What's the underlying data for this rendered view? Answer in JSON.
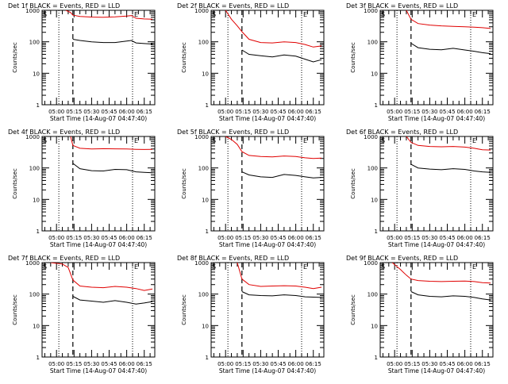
{
  "xlabel": "Start Time (14-Aug-07 04:47:40)",
  "ylabel": "Counts/sec",
  "x_ticks": [
    "05:00",
    "05:15",
    "05:30",
    "05:45",
    "06:00",
    "06:15"
  ],
  "y_ticks": [
    "1",
    "10",
    "100",
    "1000"
  ],
  "colors": {
    "events": "#000000",
    "lld": "#e00000"
  },
  "chart_data": [
    {
      "type": "line",
      "title": "Det 1f BLACK = Events, RED = LLD",
      "flag_s": "S",
      "flag_e": "E",
      "xlim": [
        "04:47:40",
        "06:24:00"
      ],
      "ylim": [
        1,
        1000
      ],
      "yscale": "log",
      "grid": false,
      "dotted_x": [
        "05:02",
        "06:05"
      ],
      "dashed_x": [
        "05:14"
      ],
      "series": [
        {
          "name": "Events",
          "x": [
            "05:14",
            "05:20",
            "05:30",
            "05:40",
            "05:50",
            "06:00",
            "06:04",
            "06:08",
            "06:15",
            "06:22"
          ],
          "y": [
            120,
            110,
            100,
            95,
            95,
            105,
            110,
            92,
            88,
            85
          ]
        },
        {
          "name": "LLD",
          "x": [
            "05:08",
            "05:12",
            "05:14",
            "05:20",
            "05:30",
            "05:40",
            "05:50",
            "06:00",
            "06:04",
            "06:08",
            "06:15",
            "06:22"
          ],
          "y": [
            1000,
            850,
            700,
            640,
            610,
            600,
            620,
            660,
            680,
            560,
            530,
            520
          ]
        }
      ]
    },
    {
      "type": "line",
      "title": "Det 2f BLACK = Events, RED = LLD",
      "flag_s": "S",
      "flag_e": "E",
      "xlim": [
        "04:47:40",
        "06:24:00"
      ],
      "ylim": [
        1,
        1000
      ],
      "yscale": "log",
      "grid": false,
      "dotted_x": [
        "05:02",
        "06:05"
      ],
      "dashed_x": [
        "05:14"
      ],
      "series": [
        {
          "name": "Events",
          "x": [
            "05:14",
            "05:20",
            "05:30",
            "05:40",
            "05:50",
            "06:00",
            "06:08",
            "06:15",
            "06:22"
          ],
          "y": [
            55,
            40,
            36,
            33,
            38,
            35,
            28,
            23,
            27
          ]
        },
        {
          "name": "LLD",
          "x": [
            "05:00",
            "05:05",
            "05:10",
            "05:14",
            "05:20",
            "05:30",
            "05:40",
            "05:50",
            "06:00",
            "06:08",
            "06:15",
            "06:22"
          ],
          "y": [
            1000,
            520,
            320,
            210,
            120,
            95,
            92,
            100,
            95,
            82,
            68,
            74
          ]
        }
      ]
    },
    {
      "type": "line",
      "title": "Det 3f BLACK = Events, RED = LLD",
      "flag_s": "S",
      "flag_e": "E",
      "xlim": [
        "04:47:40",
        "06:24:00"
      ],
      "ylim": [
        1,
        1000
      ],
      "yscale": "log",
      "grid": false,
      "dotted_x": [
        "05:02",
        "06:05"
      ],
      "dashed_x": [
        "05:14"
      ],
      "series": [
        {
          "name": "Events",
          "x": [
            "05:14",
            "05:20",
            "05:30",
            "05:40",
            "05:50",
            "06:00",
            "06:08",
            "06:15",
            "06:22"
          ],
          "y": [
            90,
            65,
            58,
            56,
            62,
            55,
            50,
            45,
            42
          ]
        },
        {
          "name": "LLD",
          "x": [
            "05:10",
            "05:14",
            "05:20",
            "05:30",
            "05:40",
            "05:50",
            "06:00",
            "06:08",
            "06:15",
            "06:22"
          ],
          "y": [
            1000,
            520,
            380,
            340,
            320,
            310,
            300,
            290,
            280,
            265
          ]
        }
      ]
    },
    {
      "type": "line",
      "title": "Det 4f BLACK = Events, RED = LLD",
      "flag_s": "S",
      "flag_e": "E",
      "xlim": [
        "04:47:40",
        "06:24:00"
      ],
      "ylim": [
        1,
        1000
      ],
      "yscale": "log",
      "grid": false,
      "dotted_x": [
        "05:02",
        "06:05"
      ],
      "dashed_x": [
        "05:14"
      ],
      "series": [
        {
          "name": "Events",
          "x": [
            "05:14",
            "05:20",
            "05:30",
            "05:40",
            "05:50",
            "06:00",
            "06:08",
            "06:15",
            "06:22"
          ],
          "y": [
            140,
            95,
            82,
            80,
            90,
            88,
            75,
            72,
            70
          ]
        },
        {
          "name": "LLD",
          "x": [
            "05:12",
            "05:14",
            "05:20",
            "05:30",
            "05:40",
            "05:50",
            "06:00",
            "06:08",
            "06:15",
            "06:22"
          ],
          "y": [
            1000,
            520,
            420,
            400,
            410,
            405,
            400,
            390,
            385,
            390
          ]
        }
      ]
    },
    {
      "type": "line",
      "title": "Det 5f BLACK = Events, RED = LLD",
      "flag_s": "S",
      "flag_e": "E",
      "xlim": [
        "04:47:40",
        "06:24:00"
      ],
      "ylim": [
        1,
        1000
      ],
      "yscale": "log",
      "grid": false,
      "dotted_x": [
        "05:02",
        "06:05"
      ],
      "dashed_x": [
        "05:14"
      ],
      "series": [
        {
          "name": "Events",
          "x": [
            "05:14",
            "05:20",
            "05:30",
            "05:40",
            "05:50",
            "06:00",
            "06:08",
            "06:15",
            "06:22"
          ],
          "y": [
            75,
            60,
            52,
            50,
            62,
            58,
            52,
            48,
            50
          ]
        },
        {
          "name": "LLD",
          "x": [
            "05:00",
            "05:05",
            "05:10",
            "05:14",
            "05:20",
            "05:30",
            "05:40",
            "05:50",
            "06:00",
            "06:08",
            "06:15",
            "06:22"
          ],
          "y": [
            1000,
            800,
            560,
            330,
            250,
            230,
            225,
            240,
            230,
            210,
            200,
            205
          ]
        }
      ]
    },
    {
      "type": "line",
      "title": "Det 6f BLACK = Events, RED = LLD",
      "flag_s": "S",
      "flag_e": "E",
      "xlim": [
        "04:47:40",
        "06:24:00"
      ],
      "ylim": [
        1,
        1000
      ],
      "yscale": "log",
      "grid": false,
      "dotted_x": [
        "05:02",
        "06:05"
      ],
      "dashed_x": [
        "05:14"
      ],
      "series": [
        {
          "name": "Events",
          "x": [
            "05:14",
            "05:20",
            "05:30",
            "05:40",
            "05:50",
            "06:00",
            "06:08",
            "06:15",
            "06:22"
          ],
          "y": [
            130,
            100,
            92,
            88,
            95,
            90,
            80,
            75,
            72
          ]
        },
        {
          "name": "LLD",
          "x": [
            "05:10",
            "05:14",
            "05:20",
            "05:30",
            "05:40",
            "05:50",
            "06:00",
            "06:08",
            "06:15",
            "06:22"
          ],
          "y": [
            1000,
            650,
            520,
            480,
            470,
            480,
            460,
            420,
            380,
            370
          ]
        }
      ]
    },
    {
      "type": "line",
      "title": "Det 7f BLACK = Events, RED = LLD",
      "flag_s": "S",
      "flag_e": "E",
      "xlim": [
        "04:47:40",
        "06:24:00"
      ],
      "ylim": [
        1,
        1000
      ],
      "yscale": "log",
      "grid": false,
      "dotted_x": [
        "05:02",
        "06:05"
      ],
      "dashed_x": [
        "05:14"
      ],
      "series": [
        {
          "name": "Events",
          "x": [
            "05:14",
            "05:20",
            "05:30",
            "05:40",
            "05:50",
            "06:00",
            "06:08",
            "06:15",
            "06:22"
          ],
          "y": [
            85,
            65,
            60,
            55,
            62,
            55,
            48,
            52,
            58
          ]
        },
        {
          "name": "LLD",
          "x": [
            "04:55",
            "05:05",
            "05:10",
            "05:14",
            "05:20",
            "05:30",
            "05:40",
            "05:50",
            "06:00",
            "06:08",
            "06:15",
            "06:22"
          ],
          "y": [
            1000,
            900,
            700,
            280,
            180,
            165,
            160,
            175,
            165,
            150,
            130,
            145
          ]
        }
      ]
    },
    {
      "type": "line",
      "title": "Det 8f BLACK = Events, RED = LLD",
      "flag_s": "S",
      "flag_e": "E",
      "xlim": [
        "04:47:40",
        "06:24:00"
      ],
      "ylim": [
        1,
        1000
      ],
      "yscale": "log",
      "grid": false,
      "dotted_x": [
        "05:02",
        "06:05"
      ],
      "dashed_x": [
        "05:14"
      ],
      "series": [
        {
          "name": "Events",
          "x": [
            "05:14",
            "05:20",
            "05:30",
            "05:40",
            "05:50",
            "06:00",
            "06:08",
            "06:15",
            "06:22"
          ],
          "y": [
            120,
            95,
            90,
            88,
            95,
            90,
            82,
            80,
            78
          ]
        },
        {
          "name": "LLD",
          "x": [
            "05:10",
            "05:14",
            "05:20",
            "05:30",
            "05:40",
            "05:50",
            "06:00",
            "06:08",
            "06:15",
            "06:22"
          ],
          "y": [
            1000,
            300,
            200,
            175,
            180,
            185,
            180,
            165,
            150,
            165
          ]
        }
      ]
    },
    {
      "type": "line",
      "title": "Det 9f BLACK = Events, RED = LLD",
      "flag_s": "S",
      "flag_e": "E",
      "xlim": [
        "04:47:40",
        "06:24:00"
      ],
      "ylim": [
        1,
        1000
      ],
      "yscale": "log",
      "grid": false,
      "dotted_x": [
        "05:02",
        "06:05"
      ],
      "dashed_x": [
        "05:14"
      ],
      "series": [
        {
          "name": "Events",
          "x": [
            "05:14",
            "05:20",
            "05:30",
            "05:40",
            "05:50",
            "06:00",
            "06:08",
            "06:15",
            "06:22"
          ],
          "y": [
            120,
            95,
            85,
            82,
            88,
            85,
            78,
            70,
            65
          ]
        },
        {
          "name": "LLD",
          "x": [
            "04:58",
            "05:05",
            "05:10",
            "05:14",
            "05:20",
            "05:30",
            "05:40",
            "05:50",
            "06:00",
            "06:08",
            "06:15",
            "06:22"
          ],
          "y": [
            1000,
            600,
            400,
            300,
            270,
            255,
            250,
            255,
            260,
            250,
            230,
            225
          ]
        }
      ]
    }
  ]
}
